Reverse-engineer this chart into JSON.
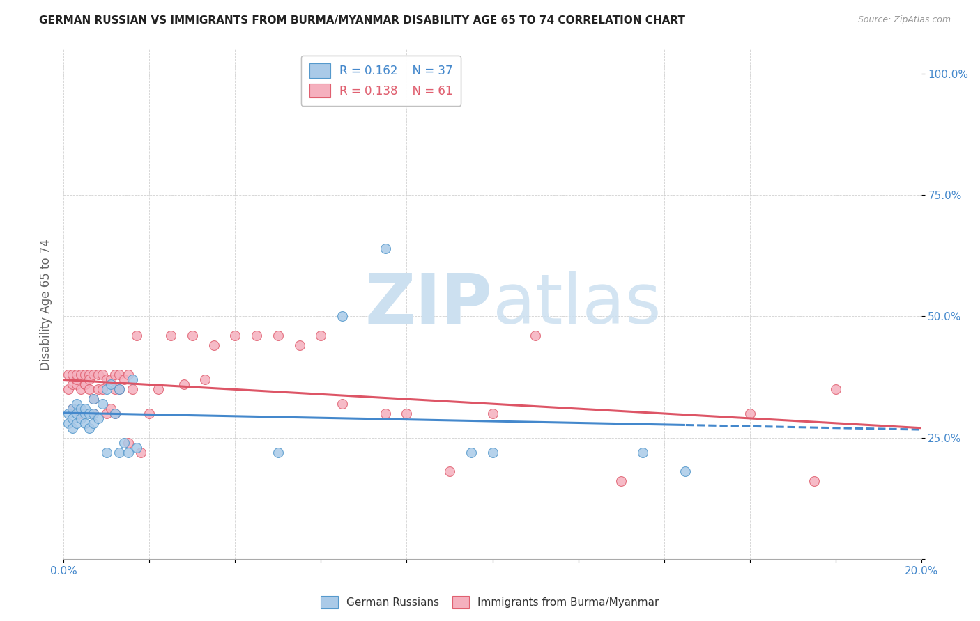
{
  "title": "GERMAN RUSSIAN VS IMMIGRANTS FROM BURMA/MYANMAR DISABILITY AGE 65 TO 74 CORRELATION CHART",
  "source": "Source: ZipAtlas.com",
  "ylabel": "Disability Age 65 to 74",
  "xmin": 0.0,
  "xmax": 0.2,
  "ymin": 0.0,
  "ymax": 1.05,
  "r_blue": 0.162,
  "n_blue": 37,
  "r_pink": 0.138,
  "n_pink": 61,
  "blue_face_color": "#aacae8",
  "blue_edge_color": "#5599cc",
  "pink_face_color": "#f5b0be",
  "pink_edge_color": "#e06070",
  "blue_line_color": "#4488cc",
  "pink_line_color": "#dd5566",
  "watermark_color": "#cce0f0",
  "grid_color": "#cccccc",
  "blue_scatter_x": [
    0.001,
    0.001,
    0.002,
    0.002,
    0.002,
    0.003,
    0.003,
    0.003,
    0.004,
    0.004,
    0.005,
    0.005,
    0.005,
    0.006,
    0.006,
    0.007,
    0.007,
    0.007,
    0.008,
    0.009,
    0.01,
    0.01,
    0.011,
    0.012,
    0.013,
    0.013,
    0.014,
    0.015,
    0.016,
    0.017,
    0.05,
    0.065,
    0.075,
    0.095,
    0.1,
    0.135,
    0.145
  ],
  "blue_scatter_y": [
    0.28,
    0.3,
    0.27,
    0.29,
    0.31,
    0.28,
    0.3,
    0.32,
    0.29,
    0.31,
    0.28,
    0.3,
    0.31,
    0.27,
    0.3,
    0.28,
    0.3,
    0.33,
    0.29,
    0.32,
    0.22,
    0.35,
    0.36,
    0.3,
    0.22,
    0.35,
    0.24,
    0.22,
    0.37,
    0.23,
    0.22,
    0.5,
    0.64,
    0.22,
    0.22,
    0.22,
    0.18
  ],
  "pink_scatter_x": [
    0.001,
    0.001,
    0.002,
    0.002,
    0.002,
    0.003,
    0.003,
    0.003,
    0.004,
    0.004,
    0.004,
    0.005,
    0.005,
    0.005,
    0.006,
    0.006,
    0.006,
    0.007,
    0.007,
    0.007,
    0.008,
    0.008,
    0.009,
    0.009,
    0.01,
    0.01,
    0.011,
    0.011,
    0.012,
    0.012,
    0.012,
    0.013,
    0.013,
    0.014,
    0.015,
    0.015,
    0.016,
    0.017,
    0.018,
    0.02,
    0.022,
    0.025,
    0.028,
    0.03,
    0.033,
    0.035,
    0.04,
    0.045,
    0.05,
    0.055,
    0.06,
    0.065,
    0.075,
    0.08,
    0.09,
    0.1,
    0.11,
    0.13,
    0.16,
    0.175,
    0.18
  ],
  "pink_scatter_y": [
    0.35,
    0.38,
    0.31,
    0.36,
    0.38,
    0.36,
    0.37,
    0.38,
    0.3,
    0.35,
    0.38,
    0.36,
    0.38,
    0.36,
    0.35,
    0.38,
    0.37,
    0.3,
    0.33,
    0.38,
    0.35,
    0.38,
    0.35,
    0.38,
    0.3,
    0.37,
    0.31,
    0.37,
    0.3,
    0.35,
    0.38,
    0.38,
    0.35,
    0.37,
    0.24,
    0.38,
    0.35,
    0.46,
    0.22,
    0.3,
    0.35,
    0.46,
    0.36,
    0.46,
    0.37,
    0.44,
    0.46,
    0.46,
    0.46,
    0.44,
    0.46,
    0.32,
    0.3,
    0.3,
    0.18,
    0.3,
    0.46,
    0.16,
    0.3,
    0.16,
    0.35
  ]
}
